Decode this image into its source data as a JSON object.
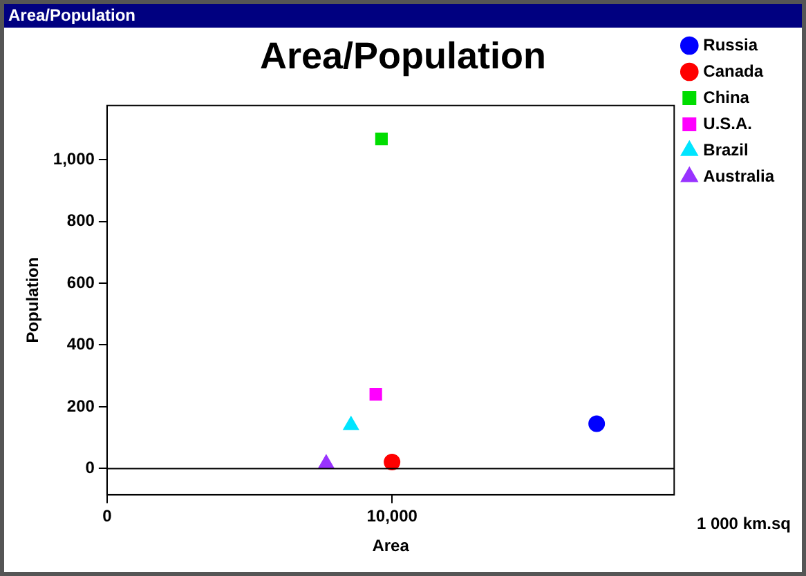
{
  "chart_data": {
    "type": "scatter",
    "title": "Area/Population",
    "xlabel": "Area",
    "ylabel": "Population",
    "annotations": [
      "Area/Population",
      "1 000 km.sq"
    ],
    "xlim": [
      0,
      19900
    ],
    "xticks": [
      0,
      {
        "value": 10000,
        "label": "10,000"
      }
    ],
    "ylim": [
      -85,
      1175
    ],
    "yticks": [
      0,
      200,
      400,
      600,
      800,
      {
        "value": 1000,
        "label": "1,000"
      }
    ],
    "grid": false,
    "legend": "right",
    "ref_lines": [
      {
        "axis": "y",
        "value": 0,
        "color": "#000000"
      }
    ],
    "series": [
      {
        "name": "Russia",
        "color": "#0000ff",
        "marker": "circle",
        "x": [
          17180
        ],
        "values": [
          145
        ]
      },
      {
        "name": "Canada",
        "color": "#ff0000",
        "marker": "circle",
        "x": [
          10000
        ],
        "values": [
          21
        ]
      },
      {
        "name": "China",
        "color": "#00dd00",
        "marker": "square",
        "x": [
          9630
        ],
        "values": [
          1067
        ]
      },
      {
        "name": "U.S.A.",
        "color": "#ff00ff",
        "marker": "square",
        "x": [
          9430
        ],
        "values": [
          240
        ]
      },
      {
        "name": "Brazil",
        "color": "#00e5ff",
        "marker": "triangle",
        "x": [
          8560
        ],
        "values": [
          140
        ]
      },
      {
        "name": "Australia",
        "color": "#9933ff",
        "marker": "triangle",
        "x": [
          7690
        ],
        "values": [
          16
        ]
      }
    ]
  }
}
